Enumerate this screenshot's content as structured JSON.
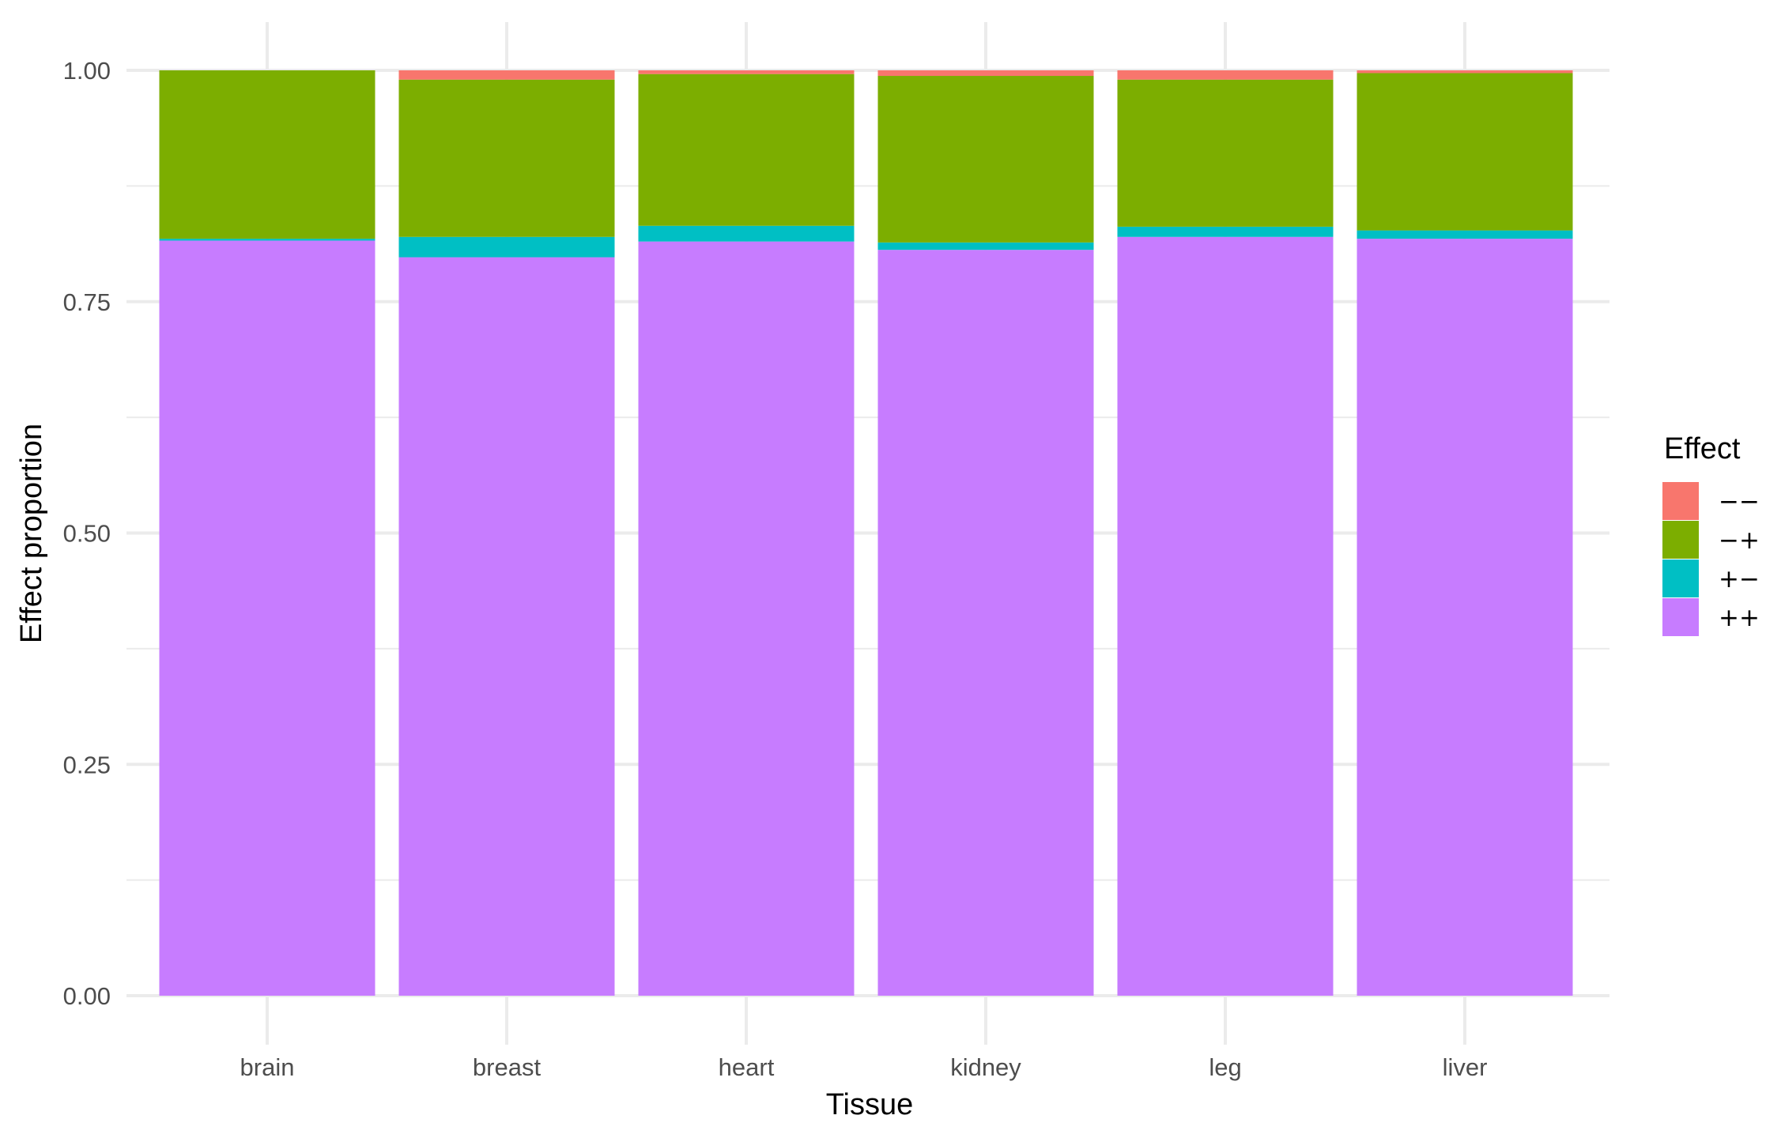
{
  "chart_data": {
    "type": "bar",
    "stacked": true,
    "xlabel": "Tissue",
    "ylabel": "Effect proportion",
    "ylim": [
      0,
      1
    ],
    "yticks": [
      "0.00",
      "0.25",
      "0.50",
      "0.75",
      "1.00"
    ],
    "categories": [
      "brain",
      "breast",
      "heart",
      "kidney",
      "leg",
      "liver"
    ],
    "series": [
      {
        "name": "++",
        "color": "#C77CFF",
        "values": [
          0.816,
          0.798,
          0.815,
          0.806,
          0.82,
          0.818
        ]
      },
      {
        "name": "+−",
        "color": "#00BFC4",
        "values": [
          0.002,
          0.022,
          0.017,
          0.008,
          0.011,
          0.009
        ]
      },
      {
        "name": "−+",
        "color": "#7CAE00",
        "values": [
          0.182,
          0.17,
          0.164,
          0.18,
          0.159,
          0.17
        ]
      },
      {
        "name": "−−",
        "color": "#F8766D",
        "values": [
          0.0,
          0.01,
          0.004,
          0.006,
          0.01,
          0.003
        ]
      }
    ],
    "legend": {
      "title": "Effect",
      "position": "right",
      "order": [
        "−−",
        "−+",
        "+−",
        "++"
      ]
    },
    "grid": true
  }
}
